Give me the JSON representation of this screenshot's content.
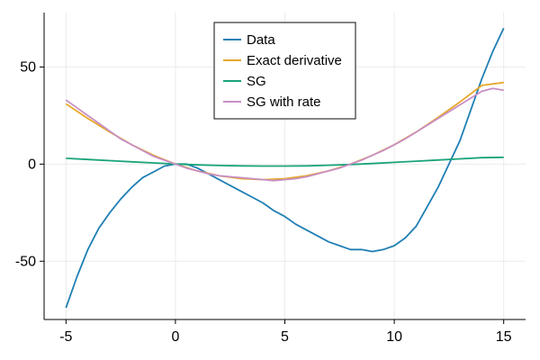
{
  "chart_data": {
    "type": "line",
    "title": "",
    "xlabel": "",
    "ylabel": "",
    "xlim": [
      -6,
      16
    ],
    "ylim": [
      -80,
      78
    ],
    "xticks": [
      -5,
      0,
      5,
      10,
      15
    ],
    "yticks": [
      -50,
      0,
      50
    ],
    "xtick_labels": [
      "-5",
      "0",
      "5",
      "10",
      "15"
    ],
    "ytick_labels": [
      "-50",
      "0",
      "50"
    ],
    "grid": true,
    "legend_position": "top-center",
    "series": [
      {
        "name": "Data",
        "color": "#1f7fb4",
        "x": [
          -5,
          -4.5,
          -4,
          -3.5,
          -3,
          -2.5,
          -2,
          -1.5,
          -1,
          -0.5,
          0,
          0.5,
          1,
          1.5,
          2,
          2.5,
          3,
          3.5,
          4,
          4.5,
          5,
          5.5,
          6,
          6.5,
          7,
          7.5,
          8,
          8.5,
          9,
          9.5,
          10,
          10.5,
          11,
          11.5,
          12,
          12.5,
          13,
          13.5,
          14,
          14.5,
          15
        ],
        "y": [
          -74,
          -58,
          -44,
          -33,
          -25,
          -18,
          -12,
          -7,
          -4,
          -1,
          0,
          0,
          -2,
          -5,
          -8,
          -11,
          -14,
          -17,
          -20,
          -24,
          -27,
          -31,
          -34,
          -37,
          -40,
          -42,
          -44,
          -44,
          -45,
          -44,
          -42,
          -38,
          -32,
          -22,
          -12,
          0,
          12,
          28,
          44,
          58,
          70
        ]
      },
      {
        "name": "Exact derivative",
        "color": "#e6a82a",
        "x": [
          -5,
          -4,
          -3,
          -2,
          -1,
          0,
          1,
          2,
          3,
          4,
          5,
          6,
          7,
          8,
          9,
          10,
          11,
          12,
          13,
          14,
          15
        ],
        "y": [
          31,
          23.5,
          16.5,
          10,
          4.5,
          0,
          -3.5,
          -6,
          -7.5,
          -8,
          -7.5,
          -6,
          -3.5,
          0,
          4.5,
          10,
          16.5,
          24,
          32,
          40.5,
          42
        ]
      },
      {
        "name": "SG",
        "color": "#1aa37a",
        "x": [
          -5,
          -4,
          -3,
          -2,
          -1,
          0,
          1,
          2,
          3,
          4,
          5,
          6,
          7,
          8,
          9,
          10,
          11,
          12,
          13,
          14,
          15
        ],
        "y": [
          3,
          2.4,
          1.8,
          1.2,
          0.6,
          0,
          -0.4,
          -0.7,
          -0.9,
          -1,
          -1,
          -0.9,
          -0.6,
          -0.2,
          0.3,
          0.9,
          1.5,
          2.1,
          2.7,
          3.3,
          3.5
        ]
      },
      {
        "name": "SG with rate",
        "color": "#c88fc4",
        "x": [
          -5,
          -4.5,
          -4,
          -3.5,
          -3,
          -2.5,
          -2,
          -1.5,
          -1,
          -0.5,
          0,
          0.5,
          1,
          1.5,
          2,
          2.5,
          3,
          3.5,
          4,
          4.5,
          5,
          5.5,
          6,
          6.5,
          7,
          7.5,
          8,
          8.5,
          9,
          9.5,
          10,
          10.5,
          11,
          11.5,
          12,
          12.5,
          13,
          13.5,
          14,
          14.5,
          15
        ],
        "y": [
          33,
          29,
          25,
          21,
          17,
          13,
          10,
          7,
          4,
          2,
          0,
          -2,
          -3.5,
          -5,
          -6,
          -6.5,
          -7,
          -7.5,
          -8,
          -8.5,
          -8,
          -7.5,
          -6.5,
          -5,
          -3.5,
          -2,
          0,
          2,
          4.5,
          7,
          10,
          13,
          16.5,
          20,
          23.5,
          27,
          30.5,
          34,
          37.5,
          39,
          38
        ]
      }
    ]
  }
}
